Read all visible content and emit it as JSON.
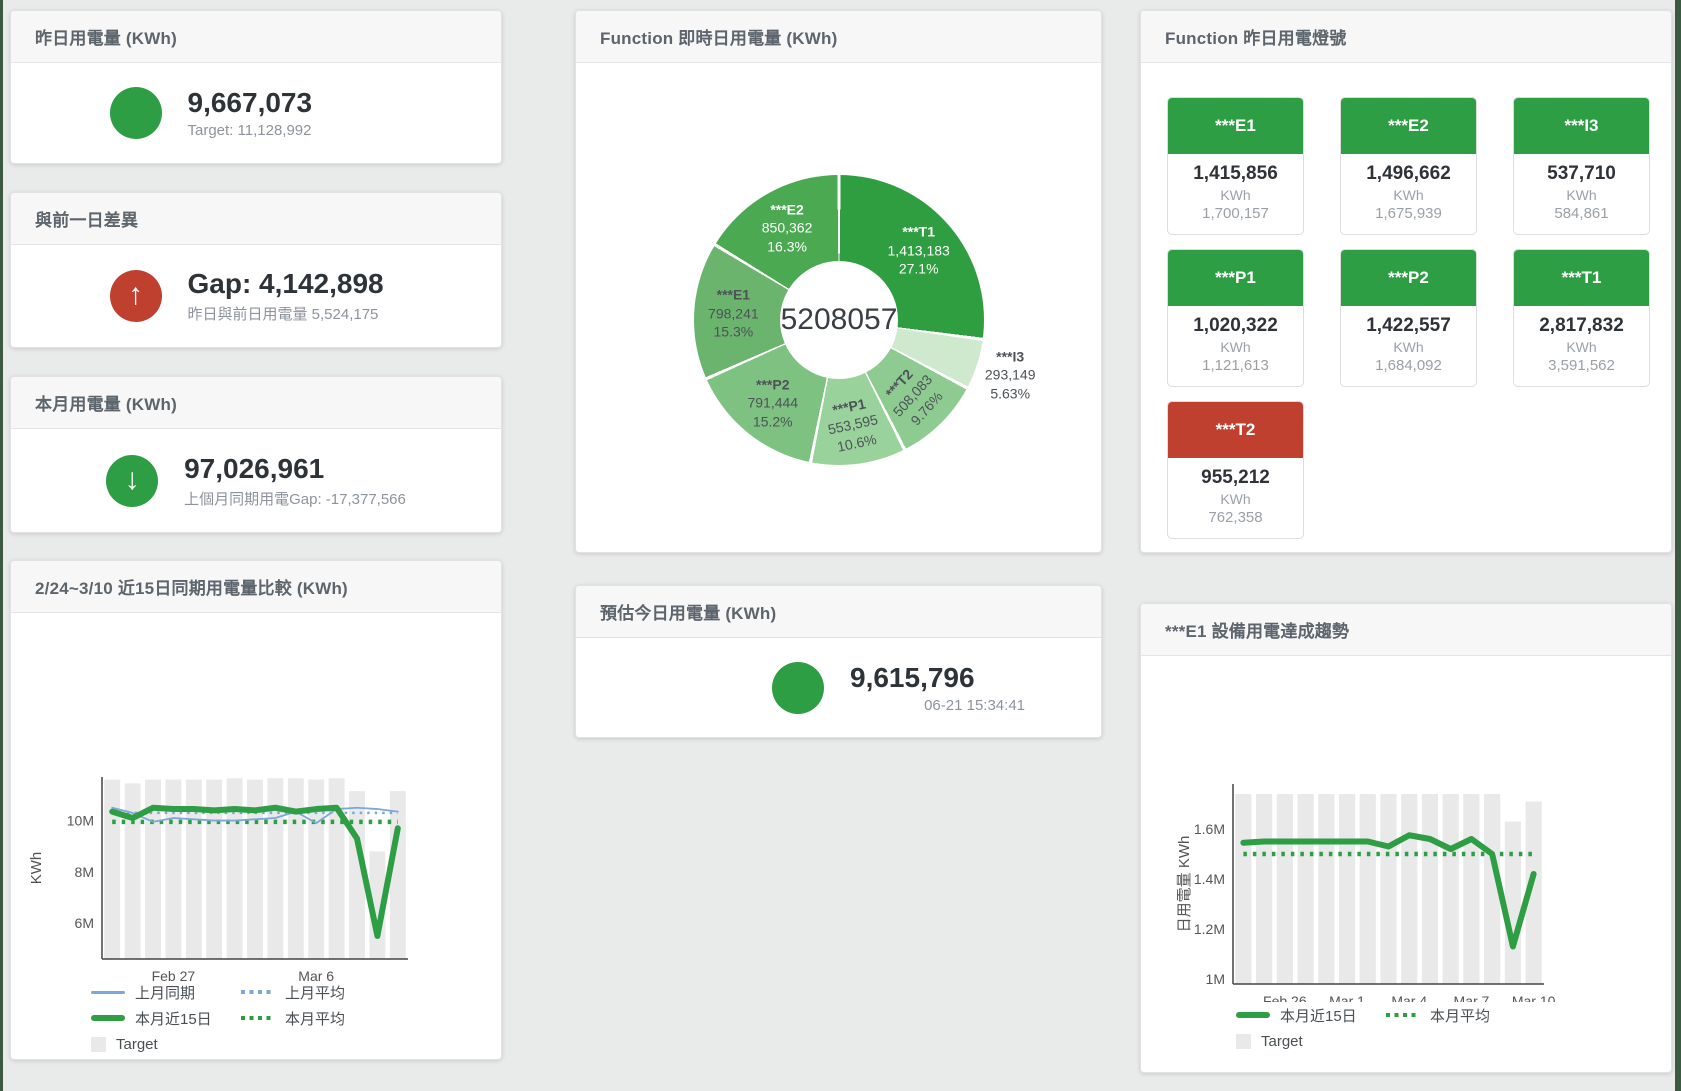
{
  "page": {
    "background": "#e9eaea",
    "edge_strip_color": "#3c5a41"
  },
  "colors": {
    "green": "#2e9e44",
    "red": "#c0402f",
    "blue": "#7da7d9",
    "target_bar": "#e9e9e9"
  },
  "cards": {
    "yesterday": {
      "title": "昨日用電量 (KWh)",
      "value": "9,667,073",
      "subtext": "Target: 11,128,992",
      "indicator": "green-circle"
    },
    "gap": {
      "title": "與前一日差異",
      "value": "Gap: 4,142,898",
      "subtext": "昨日與前日用電量 5,524,175",
      "indicator": "red-up-arrow"
    },
    "month": {
      "title": "本月用電量 (KWh)",
      "value": "97,026,961",
      "subtext": "上個月同期用電Gap: -17,377,566",
      "indicator": "green-down-arrow"
    },
    "estimate": {
      "title": "預估今日用電量 (KWh)",
      "value": "9,615,796",
      "subtext": "06-21 15:34:41",
      "indicator": "green-circle"
    }
  },
  "donut_card": {
    "title": "Function 即時日用電量 (KWh)"
  },
  "lights_card": {
    "title": "Function 昨日用電燈號",
    "unit": "KWh",
    "tiles": [
      {
        "name": "***E1",
        "value": "1,415,856",
        "unit": "KWh",
        "target": "1,700,157",
        "status": "green"
      },
      {
        "name": "***E2",
        "value": "1,496,662",
        "unit": "KWh",
        "target": "1,675,939",
        "status": "green"
      },
      {
        "name": "***I3",
        "value": "537,710",
        "unit": "KWh",
        "target": "584,861",
        "status": "green"
      },
      {
        "name": "***P1",
        "value": "1,020,322",
        "unit": "KWh",
        "target": "1,121,613",
        "status": "green"
      },
      {
        "name": "***P2",
        "value": "1,422,557",
        "unit": "KWh",
        "target": "1,684,092",
        "status": "green"
      },
      {
        "name": "***T1",
        "value": "2,817,832",
        "unit": "KWh",
        "target": "3,591,562",
        "status": "green"
      },
      {
        "name": "***T2",
        "value": "955,212",
        "unit": "KWh",
        "target": "762,358",
        "status": "red"
      }
    ]
  },
  "compare_card": {
    "title": "2/24~3/10 近15日同期用電量比較 (KWh)"
  },
  "trend_card": {
    "title": "***E1 設備用電達成趨勢"
  },
  "chart_data": [
    {
      "type": "pie",
      "title": "Function 即時日用電量 (KWh)",
      "center_label": "5208057",
      "total": 5208057,
      "slices": [
        {
          "name": "***T1",
          "value": 1413183,
          "value_label": "1,413,183",
          "percent": 27.1,
          "percent_label": "27.1%",
          "color": "#2e9e41",
          "label_pos": "inside",
          "text_color": "#ffffff",
          "rotate": 0
        },
        {
          "name": "***I3",
          "value": 293149,
          "value_label": "293,149",
          "percent": 5.63,
          "percent_label": "5.63%",
          "color": "#cfe9cf",
          "label_pos": "outside",
          "text_color": "#4d5257",
          "rotate": 0
        },
        {
          "name": "***T2",
          "value": 508083,
          "value_label": "508,083",
          "percent": 9.76,
          "percent_label": "9.76%",
          "color": "#8ecb91",
          "label_pos": "inside",
          "text_color": "#4d5257",
          "rotate": -48
        },
        {
          "name": "***P1",
          "value": 553595,
          "value_label": "553,595",
          "percent": 10.6,
          "percent_label": "10.6%",
          "color": "#9ad29c",
          "label_pos": "inside",
          "text_color": "#4d5257",
          "rotate": -12
        },
        {
          "name": "***P2",
          "value": 791444,
          "value_label": "791,444",
          "percent": 15.2,
          "percent_label": "15.2%",
          "color": "#7ec281",
          "label_pos": "inside",
          "text_color": "#4d5257",
          "rotate": 0
        },
        {
          "name": "***E1",
          "value": 798241,
          "value_label": "798,241",
          "percent": 15.3,
          "percent_label": "15.3%",
          "color": "#6ab46d",
          "label_pos": "inside",
          "text_color": "#4d5257",
          "rotate": 0
        },
        {
          "name": "***E2",
          "value": 850362,
          "value_label": "850,362",
          "percent": 16.3,
          "percent_label": "16.3%",
          "color": "#4aa951",
          "label_pos": "inside",
          "text_color": "#ffffff",
          "rotate": 0
        }
      ]
    },
    {
      "type": "line",
      "title": "2/24~3/10 近15日同期用電量比較 (KWh)",
      "xlabel": "",
      "ylabel": "KWh",
      "ylim": [
        4.6,
        11.7
      ],
      "yticks": [
        {
          "v": 6,
          "label": "6M"
        },
        {
          "v": 8,
          "label": "8M"
        },
        {
          "v": 10,
          "label": "10M"
        }
      ],
      "x": [
        "Feb 24",
        "Feb 25",
        "Feb 26",
        "Feb 27",
        "Feb 28",
        "Mar 1",
        "Mar 2",
        "Mar 3",
        "Mar 4",
        "Mar 5",
        "Mar 6",
        "Mar 7",
        "Mar 8",
        "Mar 9",
        "Mar 10"
      ],
      "xticks": [
        {
          "index": 3,
          "label": "Feb 27"
        },
        {
          "index": 10,
          "label": "Mar 6"
        }
      ],
      "unit": "M KWh",
      "grid": false,
      "legend_position": "bottom",
      "series": [
        {
          "name": "Target",
          "type": "bar",
          "color": "#e9e9e9",
          "values": [
            11.6,
            11.45,
            11.6,
            11.6,
            11.6,
            11.6,
            11.65,
            11.6,
            11.65,
            11.65,
            11.6,
            11.65,
            11.15,
            8.8,
            11.15
          ]
        },
        {
          "name": "上月平均",
          "type": "line",
          "style": "dotted",
          "color": "#7da7d9",
          "width": 2.5,
          "constant": 10.3
        },
        {
          "name": "本月平均",
          "type": "line",
          "style": "dotted",
          "color": "#2e9e44",
          "width": 4.5,
          "constant": 9.95
        },
        {
          "name": "上月同期",
          "type": "line",
          "style": "solid",
          "color": "#7da7d9",
          "width": 1.8,
          "values": [
            10.5,
            10.3,
            9.95,
            10.1,
            10.05,
            10.0,
            10.0,
            10.05,
            10.1,
            10.35,
            9.9,
            10.45,
            10.5,
            10.45,
            10.35
          ]
        },
        {
          "name": "本月近15日",
          "type": "line",
          "style": "solid",
          "color": "#2e9e44",
          "width": 6,
          "values": [
            10.35,
            10.1,
            10.5,
            10.45,
            10.45,
            10.4,
            10.45,
            10.4,
            10.5,
            10.35,
            10.45,
            10.5,
            9.3,
            5.5,
            9.7
          ]
        }
      ],
      "legend": [
        {
          "label": "上月同期",
          "swatch": "line",
          "color": "#7da7d9"
        },
        {
          "label": "上月平均",
          "swatch": "dots",
          "color": "#7da7d9"
        },
        {
          "label": "本月近15日",
          "swatch": "thick",
          "color": "#2e9e44"
        },
        {
          "label": "本月平均",
          "swatch": "dots",
          "color": "#2e9e44"
        },
        {
          "label": "Target",
          "swatch": "square",
          "color": "#e9e9e9"
        }
      ]
    },
    {
      "type": "line",
      "title": "***E1 設備用電達成趨勢",
      "xlabel": "",
      "ylabel": "日用電量 KWh",
      "ylim": [
        0.98,
        1.78
      ],
      "yticks": [
        {
          "v": 1,
          "label": "1M"
        },
        {
          "v": 1.2,
          "label": "1.2M"
        },
        {
          "v": 1.4,
          "label": "1.4M"
        },
        {
          "v": 1.6,
          "label": "1.6M"
        }
      ],
      "x": [
        "Feb 24",
        "Feb 25",
        "Feb 26",
        "Feb 27",
        "Feb 28",
        "Mar 1",
        "Mar 2",
        "Mar 3",
        "Mar 4",
        "Mar 5",
        "Mar 6",
        "Mar 7",
        "Mar 8",
        "Mar 9",
        "Mar 10"
      ],
      "xticks": [
        {
          "index": 2,
          "label": "Feb 26"
        },
        {
          "index": 5,
          "label": "Mar 1"
        },
        {
          "index": 8,
          "label": "Mar 4"
        },
        {
          "index": 11,
          "label": "Mar 7"
        },
        {
          "index": 14,
          "label": "Mar 10"
        }
      ],
      "unit": "M KWh",
      "grid": false,
      "legend_position": "bottom",
      "series": [
        {
          "name": "Target",
          "type": "bar",
          "color": "#e9e9e9",
          "values": [
            1.74,
            1.74,
            1.74,
            1.74,
            1.74,
            1.74,
            1.74,
            1.74,
            1.74,
            1.74,
            1.74,
            1.74,
            1.74,
            1.63,
            1.71
          ]
        },
        {
          "name": "本月平均",
          "type": "line",
          "style": "dotted",
          "color": "#2e9e44",
          "width": 4.5,
          "constant": 1.5
        },
        {
          "name": "本月近15日",
          "type": "line",
          "style": "solid",
          "color": "#2e9e44",
          "width": 6,
          "values": [
            1.545,
            1.55,
            1.55,
            1.55,
            1.55,
            1.55,
            1.55,
            1.53,
            1.575,
            1.56,
            1.52,
            1.56,
            1.5,
            1.13,
            1.42
          ]
        }
      ],
      "legend": [
        {
          "label": "本月近15日",
          "swatch": "thick",
          "color": "#2e9e44"
        },
        {
          "label": "本月平均",
          "swatch": "dots",
          "color": "#2e9e44"
        },
        {
          "label": "Target",
          "swatch": "square",
          "color": "#e9e9e9"
        }
      ]
    }
  ]
}
